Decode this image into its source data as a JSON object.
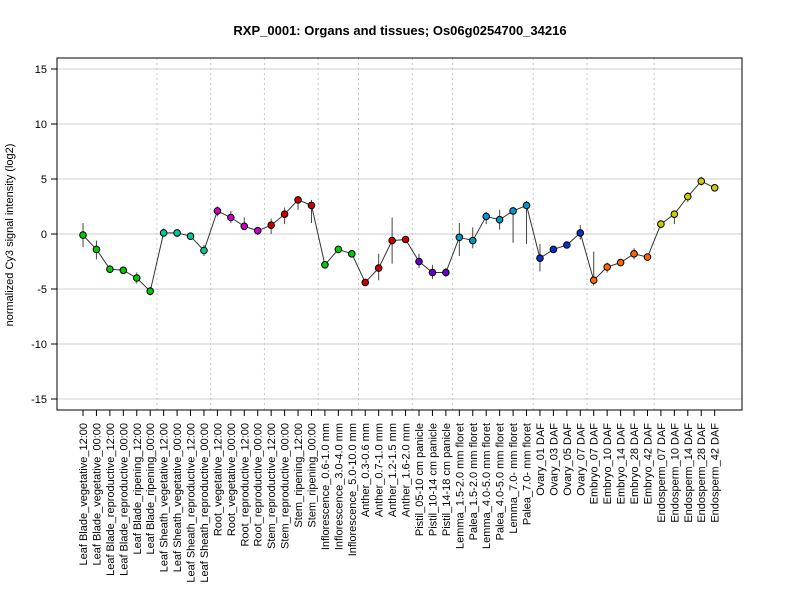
{
  "chart_data": {
    "type": "line",
    "title": "RXP_0001: Organs and tissues; Os06g0254700_34216",
    "xlabel": "",
    "ylabel": "normalized Cy3 signal intensity (log2)",
    "ylim": [
      -16,
      16
    ],
    "yticks": [
      -15,
      -10,
      -5,
      0,
      5,
      10,
      15
    ],
    "grid": true,
    "categories": [
      "Leaf Blade_vegetative_12:00",
      "Leaf Blade_vegetative_00:00",
      "Leaf Blade_reproductive_12:00",
      "Leaf Blade_reproductive_00:00",
      "Leaf Blade_ripening_12:00",
      "Leaf Blade_ripening_00:00",
      "Leaf Sheath_vegetative_12:00",
      "Leaf Sheath_vegetative_00:00",
      "Leaf Sheath_reproductive_12:00",
      "Leaf Sheath_reproductive_00:00",
      "Root_vegetative_12:00",
      "Root_vegetative_00:00",
      "Root_reproductive_12:00",
      "Root_reproductive_00:00",
      "Stem_reproductive_12:00",
      "Stem_reproductive_00:00",
      "Stem_ripening_12:00",
      "Stem_ripening_00:00",
      "Inflorescence_0.6-1.0 mm",
      "Inflorescence_3.0-4.0 mm",
      "Inflorescence_5.0-10.0 mm",
      "Anther_0.3-0.6 mm",
      "Anther_0.7-1.0 mm",
      "Anther_1.2-1.5 mm",
      "Anther_1.6-2.0 mm",
      "Pistil_05-10 cm panicle",
      "Pistil_10-14 cm panicle",
      "Pistil_14-18 cm panicle",
      "Lemma_1.5-2.0 mm floret",
      "Palea_1.5-2.0 mm floret",
      "Lemma_4.0-5.0 mm floret",
      "Palea_4.0-5.0 mm floret",
      "Lemma_7.0- mm floret",
      "Palea_7.0- mm floret",
      "Ovary_01 DAF",
      "Ovary_03 DAF",
      "Ovary_05 DAF",
      "Ovary_07 DAF",
      "Embryo_07 DAF",
      "Embryo_10 DAF",
      "Embryo_14 DAF",
      "Embryo_28 DAF",
      "Embryo_42 DAF",
      "Endosperm_07 DAF",
      "Endosperm_10 DAF",
      "Endosperm_14 DAF",
      "Endosperm_28 DAF",
      "Endosperm_42 DAF"
    ],
    "values": [
      -0.1,
      -1.4,
      -3.2,
      -3.3,
      -4.0,
      -5.2,
      0.1,
      0.1,
      -0.2,
      -1.5,
      2.1,
      1.5,
      0.7,
      0.3,
      0.8,
      1.8,
      3.1,
      2.6,
      -2.8,
      -1.4,
      -1.8,
      -4.4,
      -3.1,
      -0.6,
      -0.5,
      -2.5,
      -3.5,
      -3.5,
      -0.3,
      -0.6,
      1.6,
      1.3,
      2.1,
      2.6,
      -2.2,
      -1.4,
      -1.0,
      0.1,
      -4.2,
      -3.0,
      -2.6,
      -1.8,
      -2.1,
      0.9,
      1.8,
      3.4,
      4.8,
      4.2
    ],
    "error_low": [
      -1.2,
      -2.3,
      -3.5,
      -3.6,
      -4.5,
      -5.6,
      -0.2,
      -0.3,
      -0.4,
      -2.0,
      1.6,
      1.0,
      0.4,
      -0.1,
      0.0,
      0.9,
      2.2,
      1.0,
      -3.0,
      -1.6,
      -2.0,
      -4.6,
      -4.2,
      -2.7,
      -0.8,
      -3.1,
      -4.1,
      -3.9,
      -2.0,
      -1.3,
      0.9,
      0.4,
      -0.8,
      -0.9,
      -3.4,
      -1.7,
      -1.3,
      -0.5,
      -4.7,
      -3.5,
      -2.9,
      -2.3,
      -2.4,
      0.5,
      0.9,
      2.9,
      4.4,
      3.9
    ],
    "error_high": [
      1.0,
      -0.6,
      -2.9,
      -3.0,
      -3.5,
      -4.8,
      0.5,
      0.4,
      0.0,
      -1.0,
      2.5,
      2.1,
      1.5,
      0.6,
      1.4,
      2.4,
      3.3,
      3.1,
      -2.6,
      -1.2,
      -1.5,
      -4.2,
      -1.8,
      1.5,
      -0.2,
      -1.8,
      -2.8,
      -3.1,
      1.0,
      0.6,
      2.0,
      2.2,
      2.4,
      3.0,
      -0.9,
      -1.1,
      -0.7,
      0.8,
      -1.6,
      -2.6,
      -2.3,
      -1.3,
      -1.8,
      1.2,
      2.0,
      3.8,
      5.2,
      4.5
    ],
    "colors": [
      "#00cc00",
      "#00cc00",
      "#00cc00",
      "#00cc00",
      "#00cc00",
      "#00cc00",
      "#00cc99",
      "#00cc99",
      "#00cc99",
      "#00cc99",
      "#cc00cc",
      "#cc00cc",
      "#cc00cc",
      "#cc00cc",
      "#cc0000",
      "#cc0000",
      "#cc0000",
      "#cc0000",
      "#00cc00",
      "#00cc00",
      "#00cc00",
      "#cc0000",
      "#cc0000",
      "#cc0000",
      "#cc0000",
      "#6600cc",
      "#6600cc",
      "#6600cc",
      "#0099cc",
      "#0099cc",
      "#0099cc",
      "#0099cc",
      "#0099cc",
      "#0099cc",
      "#0033cc",
      "#0033cc",
      "#0033cc",
      "#0033cc",
      "#ff6600",
      "#ff6600",
      "#ff6600",
      "#ff6600",
      "#ff6600",
      "#cccc00",
      "#cccc00",
      "#cccc00",
      "#cccc00",
      "#cccc00"
    ],
    "vertical_separators_after": [
      5,
      9,
      13,
      17,
      20,
      24,
      27,
      33,
      37,
      42
    ]
  }
}
